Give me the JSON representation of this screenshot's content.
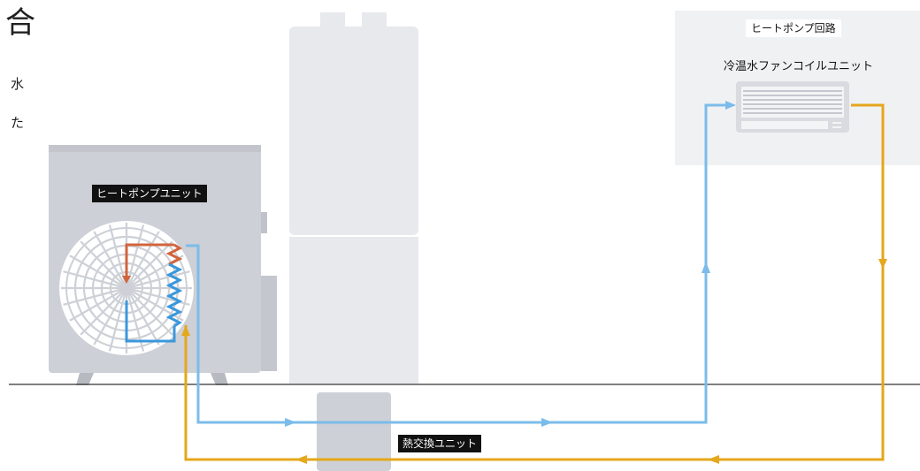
{
  "side_text": {
    "char1": "合",
    "char2": "水",
    "char3": "た"
  },
  "labels": {
    "heat_pump_unit": "ヒートポンプユニット",
    "heat_pump_circuit": "ヒートポンプ回路",
    "fan_coil_unit": "冷温水ファンコイルユニット",
    "heat_exchange_unit": "熱交換ユニット"
  },
  "colors": {
    "supply_pipe": "#7bbcea",
    "return_pipe": "#e5a71b",
    "refrigerant_hot": "#d2643c",
    "refrigerant_cold": "#3a97dc",
    "unit_body": "#cdd0d6",
    "tank_body": "#e8e9ed",
    "circuit_panel": "#f0f1f3",
    "ground_line": "#333333"
  }
}
